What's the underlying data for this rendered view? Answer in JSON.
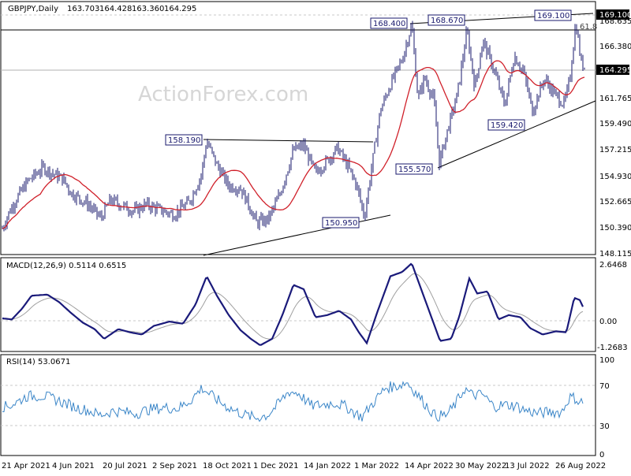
{
  "chart_data": [
    {
      "type": "candlestick",
      "title": "GBPJPY,Daily",
      "ohlc": {
        "open": "163.703",
        "high": "164.428",
        "low": "163.360",
        "close": "164.295"
      },
      "watermark": "ActionForex.com",
      "y_ticks": [
        "169.100",
        "168.635",
        "166.380",
        "164.295",
        "161.765",
        "159.490",
        "157.215",
        "154.930",
        "152.665",
        "150.390",
        "148.115"
      ],
      "ylim": [
        148.115,
        169.3
      ],
      "current_price": "164.295",
      "top_level": "169.100",
      "fib_label": "61.8",
      "levels": [
        "168.400",
        "168.670",
        "169.100",
        "158.190",
        "155.570",
        "159.420",
        "150.950"
      ],
      "moving_average_color": "#d0202a",
      "candle_color": "#1a1a6e",
      "trendline_color": "#000000",
      "x_ticks": [
        "21 Apr 2021",
        "4 Jun 2021",
        "20 Jul 2021",
        "2 Sep 2021",
        "18 Oct 2021",
        "1 Dec 2021",
        "14 Jan 2022",
        "1 Mar 2022",
        "14 Apr 2022",
        "30 May 2022",
        "13 Jul 2022",
        "26 Aug 2022"
      ]
    },
    {
      "type": "line",
      "label": "MACD(12,26,9) 0.5114 0.6515",
      "series": [
        {
          "name": "MACD",
          "color": "#1a1a7a"
        },
        {
          "name": "Signal",
          "color": "#a0a0a0"
        }
      ],
      "y_ticks": [
        "2.6468",
        "0.00",
        "-1.2683"
      ],
      "ylim": [
        -1.45,
        2.75
      ]
    },
    {
      "type": "line",
      "label": "RSI(14) 53.0671",
      "series": [
        {
          "name": "RSI",
          "color": "#3b86c8"
        }
      ],
      "y_ticks": [
        "100",
        "70",
        "30",
        "0"
      ],
      "ylim": [
        0,
        100
      ]
    }
  ]
}
